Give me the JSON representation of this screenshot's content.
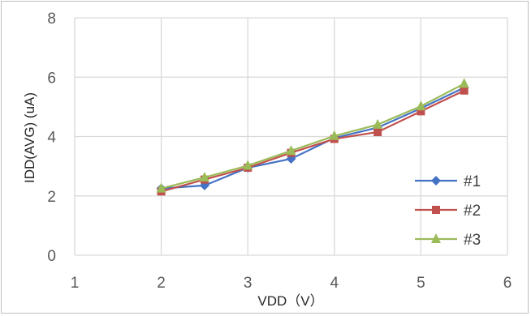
{
  "chart_data": {
    "type": "line",
    "title": "",
    "xlabel": "VDD（V）",
    "ylabel": "IDD(AVG) (uA)",
    "xlim": [
      1,
      6
    ],
    "ylim": [
      0,
      8
    ],
    "x_ticks": [
      "1",
      "2",
      "3",
      "4",
      "5",
      "6"
    ],
    "y_ticks": [
      "0",
      "2",
      "4",
      "6",
      "8"
    ],
    "grid": true,
    "legend_position": "right",
    "series": [
      {
        "name": "#1",
        "color": "#4472c4",
        "marker": "diamond",
        "points": [
          [
            2,
            2.25
          ],
          [
            2.5,
            2.35
          ],
          [
            3,
            2.95
          ],
          [
            3.5,
            3.25
          ],
          [
            4,
            3.95
          ],
          [
            4.5,
            4.3
          ],
          [
            5,
            4.95
          ],
          [
            5.5,
            5.65
          ]
        ]
      },
      {
        "name": "#2",
        "color": "#c0504d",
        "marker": "square",
        "points": [
          [
            2,
            2.15
          ],
          [
            2.5,
            2.55
          ],
          [
            3,
            2.95
          ],
          [
            3.5,
            3.45
          ],
          [
            4,
            3.92
          ],
          [
            4.5,
            4.15
          ],
          [
            5,
            4.85
          ],
          [
            5.5,
            5.55
          ]
        ]
      },
      {
        "name": "#3",
        "color": "#9bbb59",
        "marker": "triangle",
        "points": [
          [
            2,
            2.25
          ],
          [
            2.5,
            2.62
          ],
          [
            3,
            3.02
          ],
          [
            3.5,
            3.52
          ],
          [
            4,
            4.02
          ],
          [
            4.5,
            4.4
          ],
          [
            5,
            5.02
          ],
          [
            5.5,
            5.78
          ]
        ]
      }
    ]
  }
}
